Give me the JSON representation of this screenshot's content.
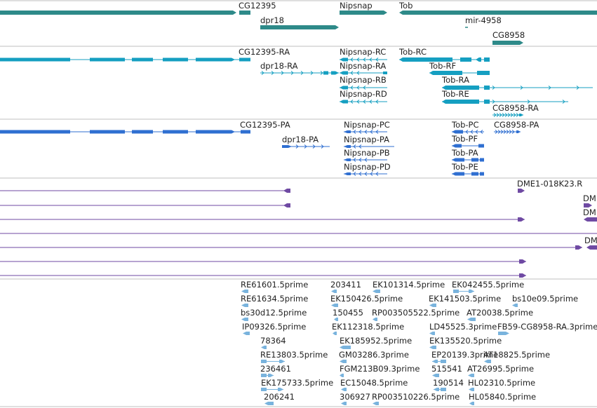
{
  "colors": {
    "gene": "#2e8a89",
    "transcript_fb": "#159fc1",
    "transcript_ref": "#2f6fd1",
    "alignment": "#6f4aa3",
    "est": "#79b3dd",
    "separator": "#bfbfbf"
  },
  "tracks": {
    "genes": {
      "labels": [
        "CG12395",
        "dpr18",
        "Nipsnap",
        "Tob",
        "mir-4958",
        "CG8958"
      ]
    },
    "fb_transcripts": {
      "labels": [
        "CG12395-RA",
        "dpr18-RA",
        "Nipsnap-RC",
        "Nipsnap-RA",
        "Nipsnap-RB",
        "Nipsnap-RD",
        "Tob-RC",
        "Tob-RF",
        "Tob-RA",
        "Tob-RE",
        "CG8958-RA"
      ]
    },
    "ref_transcripts": {
      "labels": [
        "CG12395-PA",
        "dpr18-PA",
        "Nipsnap-PC",
        "Nipsnap-PA",
        "Nipsnap-PB",
        "Nipsnap-PD",
        "Tob-PC",
        "Tob-PF",
        "Tob-PA",
        "Tob-PE",
        "CG8958-PA"
      ]
    },
    "alignments": {
      "labels": [
        "DME1-018K23.R",
        "DM",
        "DM",
        "DM"
      ]
    },
    "ests": {
      "labels": [
        "RE61601.5prime",
        "203411",
        "EK101314.5prime",
        "EK042455.5prime",
        "RE61634.5prime",
        "EK150426.5prime",
        "EK141503.5prime",
        "bs10e09.5prime",
        "bs30d12.5prime",
        "150455",
        "RP003505522.5prime",
        "AT20038.5prime",
        "IP09326.5prime",
        "EK112318.5prime",
        "LD45525.3prime",
        "FB59-CG8958-RA.3prime",
        "78364",
        "EK185952.5prime",
        "EK135520.5prime",
        "RE13803.5prime",
        "GM03286.3prime",
        "EP20139.3prime",
        "AT18825.5prime",
        "236461",
        "FGM213B09.3prime",
        "515541",
        "AT26995.5prime",
        "EK175733.5prime",
        "EC15048.5prime",
        "190514",
        "HL02310.5prime",
        "206241",
        "306927",
        "RP003510226.5prime",
        "HL05840.5prime"
      ]
    }
  }
}
